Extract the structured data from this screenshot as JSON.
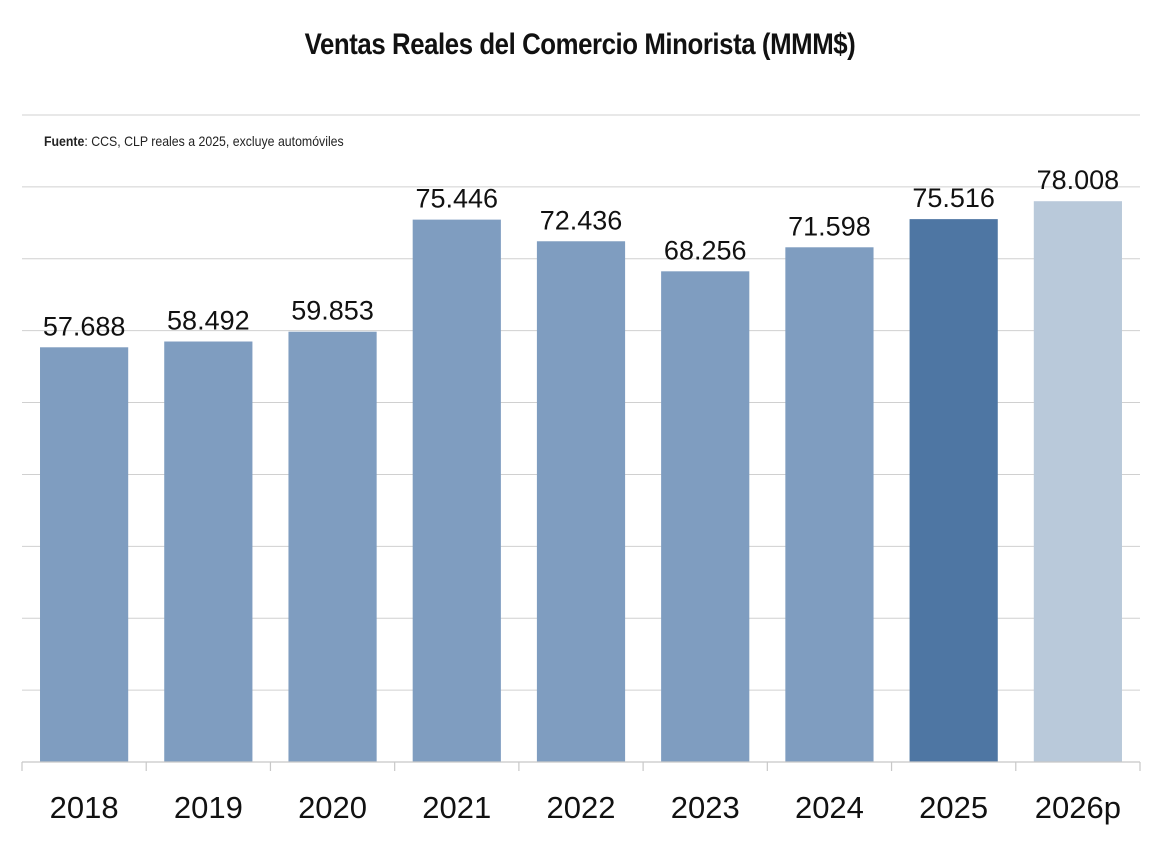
{
  "title": "Ventas Reales del Comercio Minorista (MMM$)",
  "source": {
    "label": "Fuente",
    "text": ": CCS, CLP reales a 2025, excluye automóviles"
  },
  "chart_data": {
    "type": "bar",
    "title": "Ventas Reales del Comercio Minorista (MMM$)",
    "xlabel": "",
    "ylabel": "",
    "categories": [
      "2018",
      "2019",
      "2020",
      "2021",
      "2022",
      "2023",
      "2024",
      "2025",
      "2026p"
    ],
    "values": [
      57688,
      58492,
      59853,
      75446,
      72436,
      68256,
      71598,
      75516,
      78008
    ],
    "data_labels": [
      "57.688",
      "58.492",
      "59.853",
      "75.446",
      "72.436",
      "68.256",
      "71.598",
      "75.516",
      "78.008"
    ],
    "bar_colors": [
      "#7f9dc0",
      "#7f9dc0",
      "#7f9dc0",
      "#7f9dc0",
      "#7f9dc0",
      "#7f9dc0",
      "#7f9dc0",
      "#4e76a3",
      "#b9c9da"
    ],
    "ylim": [
      0,
      80000
    ],
    "grid": true,
    "legend": "none"
  }
}
